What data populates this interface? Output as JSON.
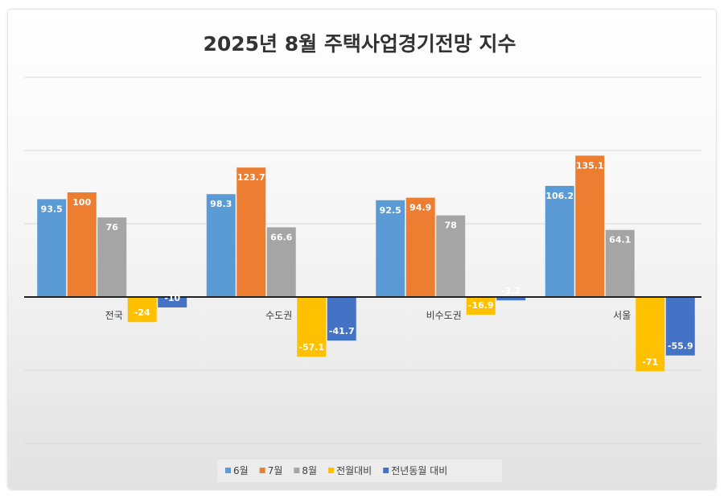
{
  "chart_data": {
    "type": "bar",
    "title": "2025년 8월 주택사업경기전망 지수",
    "categories": [
      "전국",
      "수도권",
      "비수도권",
      "서울"
    ],
    "series": [
      {
        "name": "6월",
        "color": "#5B9BD5",
        "values": [
          93.5,
          98.3,
          92.5,
          106.2
        ]
      },
      {
        "name": "7월",
        "color": "#ED7D31",
        "values": [
          100,
          123.7,
          94.9,
          135.1
        ]
      },
      {
        "name": "8월",
        "color": "#A5A5A5",
        "values": [
          76,
          66.6,
          78,
          64.1
        ]
      },
      {
        "name": "전월대비",
        "color": "#FFC000",
        "values": [
          -24,
          -57.1,
          -16.9,
          -71
        ]
      },
      {
        "name": "전년동월 대비",
        "color": "#4472C4",
        "values": [
          -10,
          -41.7,
          -3.2,
          -55.9
        ]
      }
    ],
    "value_labels": [
      [
        "93.5",
        "98.3",
        "92.5",
        "106.2"
      ],
      [
        "100",
        "123.7",
        "94.9",
        "135.1"
      ],
      [
        "76",
        "66.6",
        "78",
        "64.1"
      ],
      [
        "-24",
        "-57.1",
        "-16.9",
        "-71"
      ],
      [
        "-10",
        "-41.7",
        "-3.2",
        "-55.9"
      ]
    ],
    "ylim": [
      -100,
      150
    ],
    "grid": true,
    "legend": "bottom"
  }
}
